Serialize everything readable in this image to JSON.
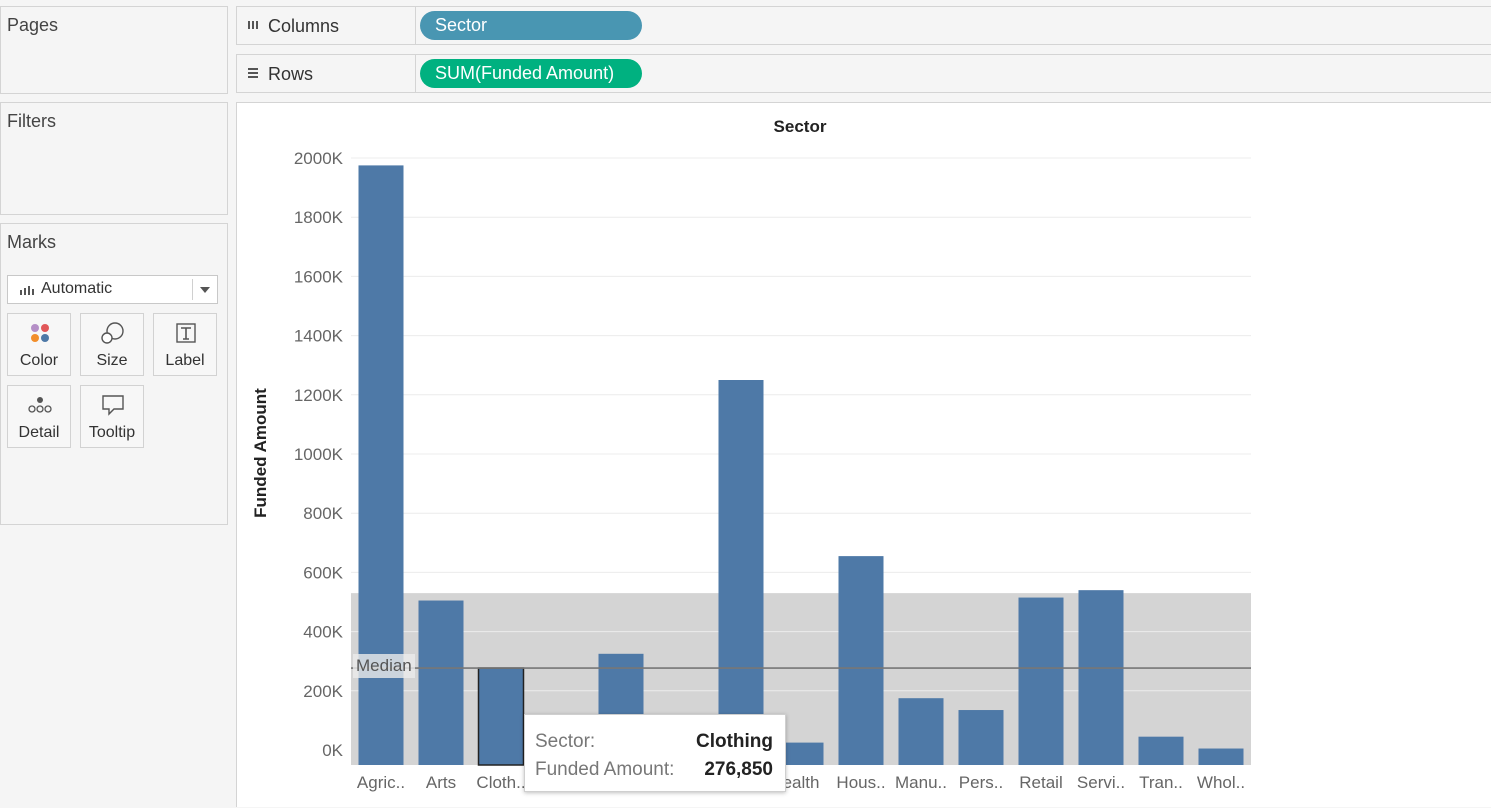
{
  "cards": {
    "pages_title": "Pages",
    "filters_title": "Filters",
    "marks_title": "Marks"
  },
  "marks": {
    "mark_type": "Automatic",
    "buttons": [
      {
        "label": "Color",
        "icon": "color-dots-icon"
      },
      {
        "label": "Size",
        "icon": "size-circles-icon"
      },
      {
        "label": "Label",
        "icon": "text-t-icon"
      },
      {
        "label": "Detail",
        "icon": "detail-dots-icon"
      },
      {
        "label": "Tooltip",
        "icon": "speech-bubble-icon"
      }
    ]
  },
  "shelves": {
    "columns_label": "Columns",
    "columns_pill": "Sector",
    "columns_pill_color": "#4996b2",
    "rows_label": "Rows",
    "rows_pill": "SUM(Funded Amount)",
    "rows_pill_color": "#00b180"
  },
  "chart_data": {
    "type": "bar",
    "title": "Sector",
    "ylabel": "Funded Amount",
    "xlabel": "",
    "bar_color": "#4e79a7",
    "categories": [
      "Agric..",
      "Arts",
      "Cloth..",
      "",
      "",
      "",
      "",
      "ealth",
      "Hous..",
      "Manu..",
      "Pers..",
      "Retail",
      "Servi..",
      "Tran..",
      "Whol.."
    ],
    "values": [
      1975000,
      505000,
      276850,
      0,
      325000,
      0,
      1250000,
      25000,
      655000,
      175000,
      135000,
      515000,
      540000,
      45000,
      5000
    ],
    "selected_index": 2,
    "ylim": [
      0,
      2000000
    ],
    "yticks": [
      "0K",
      "200K",
      "400K",
      "600K",
      "800K",
      "1000K",
      "1200K",
      "1400K",
      "1600K",
      "1800K",
      "2000K"
    ],
    "ytick_values": [
      0,
      200000,
      400000,
      600000,
      800000,
      1000000,
      1200000,
      1400000,
      1600000,
      1800000,
      2000000
    ],
    "reference_line": {
      "label": "Median",
      "value": 276850
    },
    "reference_band": {
      "from": 0,
      "to": 530000,
      "color": "#d4d4d4"
    },
    "grid": true
  },
  "tooltip": {
    "sector_key": "Sector:",
    "sector_value": "Clothing",
    "amount_key": "Funded Amount:",
    "amount_value": "276,850"
  }
}
